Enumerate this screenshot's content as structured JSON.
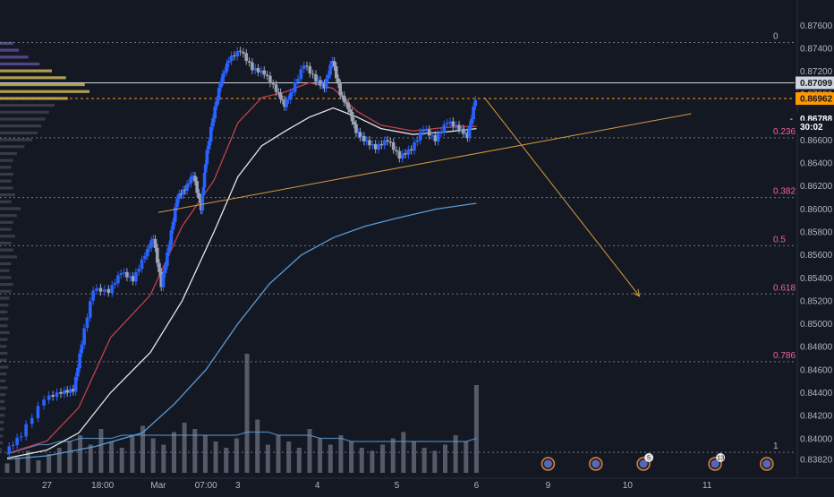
{
  "theme": {
    "background": "#141823",
    "up_color": "#2962ff",
    "down_color": "#9ca3b4",
    "fib_line_color": "#8a8d96",
    "fib_label_color": "#f06292",
    "trendline_color": "#d59b3e",
    "ema_fast_color": "#c2424b",
    "ema_mid_color": "#e6e6e6",
    "ema_slow_color": "#5b9bd5",
    "volume_color": "#6b7080",
    "current_price_color": "#ff9800"
  },
  "price_axis": {
    "ticks": [
      "0.87600",
      "0.87400",
      "0.87200",
      "0.87000",
      "0.86800",
      "0.86600",
      "0.86400",
      "0.86200",
      "0.86000",
      "0.85800",
      "0.85600",
      "0.85400",
      "0.85200",
      "0.85000",
      "0.84800",
      "0.84600",
      "0.84400",
      "0.84200",
      "0.84000",
      "0.83820"
    ],
    "labels": [
      {
        "text": "0.87099",
        "value": 0.87099,
        "style": "white"
      },
      {
        "text": "0.86962",
        "value": 0.86962,
        "style": "orange"
      },
      {
        "text": "0.86788",
        "value": 0.86788,
        "style": "dark",
        "prefix": "-"
      },
      {
        "text": "30:02",
        "value": 0.86715,
        "style": "dark"
      }
    ]
  },
  "time_axis": {
    "ticks": [
      {
        "label": "27",
        "day": 0.6
      },
      {
        "label": "18:00",
        "day": 1.3
      },
      {
        "label": "Mar",
        "day": 2.0
      },
      {
        "label": "07:00",
        "day": 2.6
      },
      {
        "label": "3",
        "day": 3.0
      },
      {
        "label": "4",
        "day": 4.0
      },
      {
        "label": "5",
        "day": 5.0
      },
      {
        "label": "6",
        "day": 6.0
      },
      {
        "label": "9",
        "day": 6.9
      },
      {
        "label": "10",
        "day": 7.9
      },
      {
        "label": "11",
        "day": 8.9
      }
    ]
  },
  "fib_levels": [
    {
      "label": "0",
      "price": 0.8745
    },
    {
      "label": "0.236",
      "price": 0.8662
    },
    {
      "label": "0.382",
      "price": 0.861
    },
    {
      "label": "0.5",
      "price": 0.8568
    },
    {
      "label": "0.618",
      "price": 0.8526
    },
    {
      "label": "0.786",
      "price": 0.8467
    },
    {
      "label": "1",
      "price": 0.8388
    }
  ],
  "horizontal_lines": [
    {
      "price": 0.87099,
      "style": "solid-white"
    },
    {
      "price": 0.86962,
      "style": "dashed-orange"
    }
  ],
  "event_markers": [
    {
      "day": 6.9,
      "badge": ""
    },
    {
      "day": 7.5,
      "badge": ""
    },
    {
      "day": 8.1,
      "badge": "5"
    },
    {
      "day": 9.0,
      "badge": "13"
    },
    {
      "day": 9.65,
      "badge": ""
    }
  ],
  "chart_data": {
    "type": "candlestick",
    "symbol_note": "",
    "x_unit": "days (0 = 27)",
    "x_range": [
      0.1,
      10.0
    ],
    "y_range": [
      0.8378,
      0.8768
    ],
    "price_points": [
      [
        0.1,
        0.8388
      ],
      [
        0.3,
        0.8403
      ],
      [
        0.6,
        0.8435
      ],
      [
        0.8,
        0.844
      ],
      [
        0.95,
        0.8442
      ],
      [
        1.05,
        0.8483
      ],
      [
        1.2,
        0.853
      ],
      [
        1.4,
        0.8528
      ],
      [
        1.55,
        0.8545
      ],
      [
        1.7,
        0.8538
      ],
      [
        1.85,
        0.856
      ],
      [
        1.95,
        0.8575
      ],
      [
        2.05,
        0.8533
      ],
      [
        2.15,
        0.857
      ],
      [
        2.25,
        0.861
      ],
      [
        2.35,
        0.8617
      ],
      [
        2.45,
        0.863
      ],
      [
        2.55,
        0.86
      ],
      [
        2.6,
        0.864
      ],
      [
        2.7,
        0.868
      ],
      [
        2.8,
        0.8712
      ],
      [
        2.9,
        0.873
      ],
      [
        3.05,
        0.8738
      ],
      [
        3.2,
        0.8722
      ],
      [
        3.35,
        0.8718
      ],
      [
        3.5,
        0.8703
      ],
      [
        3.6,
        0.869
      ],
      [
        3.7,
        0.8703
      ],
      [
        3.85,
        0.8726
      ],
      [
        4.0,
        0.8712
      ],
      [
        4.1,
        0.8706
      ],
      [
        4.2,
        0.873
      ],
      [
        4.3,
        0.87
      ],
      [
        4.4,
        0.8688
      ],
      [
        4.5,
        0.8667
      ],
      [
        4.6,
        0.866
      ],
      [
        4.75,
        0.8653
      ],
      [
        4.9,
        0.866
      ],
      [
        5.05,
        0.8645
      ],
      [
        5.2,
        0.8652
      ],
      [
        5.35,
        0.867
      ],
      [
        5.5,
        0.866
      ],
      [
        5.65,
        0.8676
      ],
      [
        5.8,
        0.867
      ],
      [
        5.9,
        0.8663
      ],
      [
        6.0,
        0.8696
      ]
    ],
    "moving_averages": [
      {
        "color_key": "ema_fast_color",
        "points": [
          [
            0.1,
            0.8387
          ],
          [
            0.6,
            0.8398
          ],
          [
            1.0,
            0.8427
          ],
          [
            1.4,
            0.8488
          ],
          [
            1.9,
            0.8525
          ],
          [
            2.3,
            0.8585
          ],
          [
            2.7,
            0.8625
          ],
          [
            3.0,
            0.8675
          ],
          [
            3.3,
            0.8697
          ],
          [
            3.6,
            0.8702
          ],
          [
            3.9,
            0.871
          ],
          [
            4.2,
            0.8705
          ],
          [
            4.5,
            0.8685
          ],
          [
            4.8,
            0.8673
          ],
          [
            5.2,
            0.8668
          ],
          [
            5.6,
            0.8671
          ],
          [
            6.0,
            0.8672
          ]
        ]
      },
      {
        "color_key": "ema_mid_color",
        "points": [
          [
            0.1,
            0.8383
          ],
          [
            0.6,
            0.839
          ],
          [
            1.0,
            0.8405
          ],
          [
            1.4,
            0.844
          ],
          [
            1.9,
            0.8475
          ],
          [
            2.3,
            0.852
          ],
          [
            2.7,
            0.858
          ],
          [
            3.0,
            0.8628
          ],
          [
            3.3,
            0.8655
          ],
          [
            3.6,
            0.8668
          ],
          [
            3.9,
            0.868
          ],
          [
            4.2,
            0.8688
          ],
          [
            4.5,
            0.868
          ],
          [
            4.8,
            0.867
          ],
          [
            5.2,
            0.8665
          ],
          [
            5.6,
            0.8667
          ],
          [
            6.0,
            0.867
          ]
        ]
      },
      {
        "color_key": "ema_slow_color",
        "points": [
          [
            0.1,
            0.8382
          ],
          [
            0.6,
            0.8385
          ],
          [
            1.2,
            0.8393
          ],
          [
            1.8,
            0.8405
          ],
          [
            2.2,
            0.843
          ],
          [
            2.6,
            0.846
          ],
          [
            3.0,
            0.85
          ],
          [
            3.4,
            0.8535
          ],
          [
            3.8,
            0.856
          ],
          [
            4.2,
            0.8575
          ],
          [
            4.6,
            0.8585
          ],
          [
            5.0,
            0.8592
          ],
          [
            5.5,
            0.86
          ],
          [
            6.0,
            0.8605
          ]
        ]
      }
    ],
    "volume": [
      3,
      5,
      7,
      4,
      6,
      8,
      10,
      12,
      9,
      14,
      10,
      8,
      12,
      15,
      11,
      9,
      13,
      16,
      14,
      12,
      10,
      8,
      11,
      38,
      17,
      9,
      12,
      10,
      8,
      14,
      11,
      9,
      12,
      10,
      8,
      7,
      9,
      11,
      13,
      10,
      8,
      7,
      9,
      12,
      10,
      28
    ],
    "volume_ma": [
      6,
      7,
      8,
      9,
      9,
      10,
      10,
      11,
      11,
      11,
      11,
      12,
      12,
      12,
      12,
      12,
      12,
      12,
      12,
      12,
      12,
      12,
      12,
      13,
      13,
      13,
      12,
      12,
      12,
      12,
      11,
      11,
      11,
      10,
      10,
      10,
      10,
      10,
      10,
      10,
      10,
      10,
      10,
      10,
      10,
      11
    ],
    "trendlines": [
      {
        "name": "",
        "points": [
          [
            2.0,
            0.8597
          ],
          [
            8.7,
            0.8683
          ]
        ]
      }
    ],
    "projection_arrow": {
      "points": [
        [
          6.1,
          0.8697
        ],
        [
          8.05,
          0.8524
        ]
      ]
    },
    "volume_profile": [
      [
        0.8744,
        14
      ],
      [
        0.8738,
        20
      ],
      [
        0.8732,
        30
      ],
      [
        0.8726,
        42
      ],
      [
        0.872,
        55
      ],
      [
        0.8714,
        70
      ],
      [
        0.8708,
        90
      ],
      [
        0.8702,
        95
      ],
      [
        0.8696,
        72
      ],
      [
        0.869,
        58
      ],
      [
        0.8684,
        52
      ],
      [
        0.8678,
        48
      ],
      [
        0.8672,
        44
      ],
      [
        0.8666,
        40
      ],
      [
        0.866,
        34
      ],
      [
        0.8654,
        26
      ],
      [
        0.8648,
        18
      ],
      [
        0.8642,
        14
      ],
      [
        0.8636,
        12
      ],
      [
        0.863,
        14
      ],
      [
        0.8624,
        12
      ],
      [
        0.8618,
        14
      ],
      [
        0.8612,
        16
      ],
      [
        0.8606,
        12
      ],
      [
        0.86,
        22
      ],
      [
        0.8594,
        18
      ],
      [
        0.8588,
        14
      ],
      [
        0.8582,
        12
      ],
      [
        0.8576,
        16
      ],
      [
        0.857,
        12
      ],
      [
        0.8564,
        14
      ],
      [
        0.8558,
        18
      ],
      [
        0.8552,
        12
      ],
      [
        0.8546,
        10
      ],
      [
        0.854,
        12
      ],
      [
        0.8534,
        14
      ],
      [
        0.8528,
        12
      ],
      [
        0.8522,
        10
      ],
      [
        0.8516,
        9
      ],
      [
        0.851,
        8
      ],
      [
        0.8504,
        9
      ],
      [
        0.8498,
        8
      ],
      [
        0.8492,
        10
      ],
      [
        0.8486,
        8
      ],
      [
        0.848,
        7
      ],
      [
        0.8474,
        8
      ],
      [
        0.8468,
        7
      ],
      [
        0.8462,
        9
      ],
      [
        0.8456,
        7
      ],
      [
        0.845,
        6
      ],
      [
        0.8444,
        8
      ],
      [
        0.8438,
        6
      ],
      [
        0.8432,
        5
      ],
      [
        0.8426,
        6
      ],
      [
        0.842,
        5
      ],
      [
        0.8414,
        4
      ],
      [
        0.8408,
        4
      ],
      [
        0.8402,
        3
      ],
      [
        0.8396,
        3
      ],
      [
        0.839,
        2
      ]
    ]
  }
}
